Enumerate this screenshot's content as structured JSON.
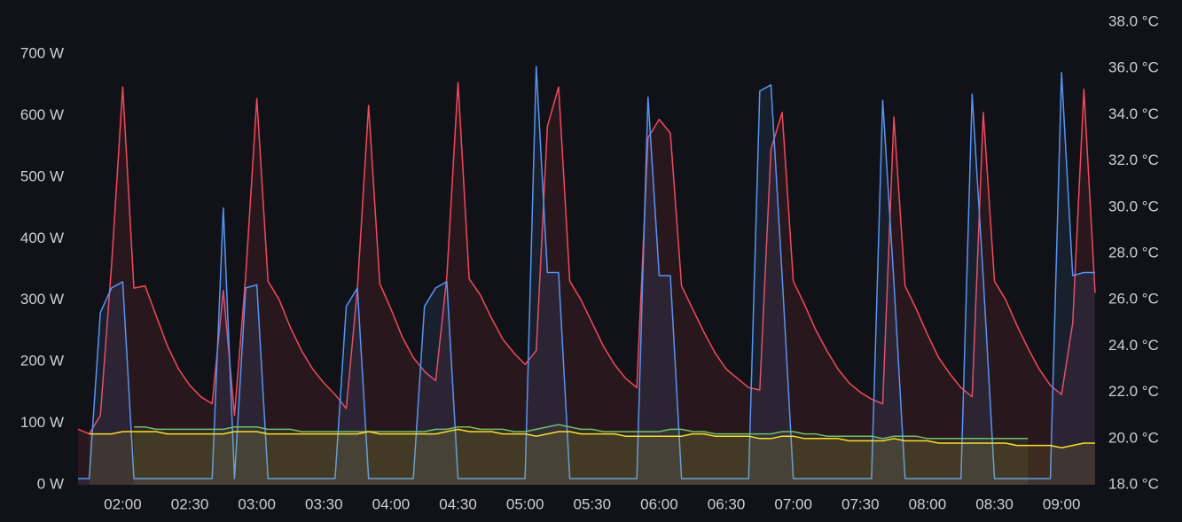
{
  "chart_data": {
    "type": "line",
    "x": [
      "01:40",
      "01:45",
      "01:50",
      "01:55",
      "02:00",
      "02:05",
      "02:10",
      "02:15",
      "02:20",
      "02:25",
      "02:30",
      "02:35",
      "02:40",
      "02:45",
      "02:50",
      "02:55",
      "03:00",
      "03:05",
      "03:10",
      "03:15",
      "03:20",
      "03:25",
      "03:30",
      "03:35",
      "03:40",
      "03:45",
      "03:50",
      "03:55",
      "04:00",
      "04:05",
      "04:10",
      "04:15",
      "04:20",
      "04:25",
      "04:30",
      "04:35",
      "04:40",
      "04:45",
      "04:50",
      "04:55",
      "05:00",
      "05:05",
      "05:10",
      "05:15",
      "05:20",
      "05:25",
      "05:30",
      "05:35",
      "05:40",
      "05:45",
      "05:50",
      "05:55",
      "06:00",
      "06:05",
      "06:10",
      "06:15",
      "06:20",
      "06:25",
      "06:30",
      "06:35",
      "06:40",
      "06:45",
      "06:50",
      "06:55",
      "07:00",
      "07:05",
      "07:10",
      "07:15",
      "07:20",
      "07:25",
      "07:30",
      "07:35",
      "07:40",
      "07:45",
      "07:50",
      "07:55",
      "08:00",
      "08:05",
      "08:10",
      "08:15",
      "08:20",
      "08:25",
      "08:30",
      "08:35",
      "08:40",
      "08:45",
      "08:50",
      "08:55",
      "09:00",
      "09:05",
      "09:10",
      "09:15"
    ],
    "xlim": [
      "01:40",
      "09:17"
    ],
    "xticks": [
      "02:00",
      "02:30",
      "03:00",
      "03:30",
      "04:00",
      "04:30",
      "05:00",
      "05:30",
      "06:00",
      "06:30",
      "07:00",
      "07:30",
      "08:00",
      "08:30",
      "09:00"
    ],
    "ylim": [
      0,
      752
    ],
    "yticks": [
      {
        "value": 0,
        "label": "0 W"
      },
      {
        "value": 100,
        "label": "100 W"
      },
      {
        "value": 200,
        "label": "200 W"
      },
      {
        "value": 300,
        "label": "300 W"
      },
      {
        "value": 400,
        "label": "400 W"
      },
      {
        "value": 500,
        "label": "500 W"
      },
      {
        "value": 600,
        "label": "600 W"
      },
      {
        "value": 700,
        "label": "700 W"
      }
    ],
    "y2lim": [
      18,
      38
    ],
    "y2ticks": [
      {
        "value": 18,
        "label": "18.0 °C"
      },
      {
        "value": 20,
        "label": "20.0 °C"
      },
      {
        "value": 22,
        "label": "22.0 °C"
      },
      {
        "value": 24,
        "label": "24.0 °C"
      },
      {
        "value": 26,
        "label": "26.0 °C"
      },
      {
        "value": 28,
        "label": "28.0 °C"
      },
      {
        "value": 30,
        "label": "30.0 °C"
      },
      {
        "value": 32,
        "label": "32.0 °C"
      },
      {
        "value": 34,
        "label": "34.0 °C"
      },
      {
        "value": 36,
        "label": "36.0 °C"
      },
      {
        "value": 38,
        "label": "38.0 °C"
      }
    ],
    "series": [
      {
        "color": "#f2495c",
        "axis": "y2",
        "values": [
          20.4,
          20.2,
          21.0,
          27.5,
          35.2,
          26.5,
          26.6,
          25.3,
          24.0,
          23.0,
          22.3,
          21.8,
          21.5,
          26.4,
          21.0,
          27.0,
          34.7,
          26.8,
          26.0,
          24.8,
          23.8,
          23.0,
          22.4,
          21.9,
          21.3,
          26.5,
          34.4,
          26.7,
          25.6,
          24.4,
          23.5,
          22.9,
          22.5,
          27.0,
          35.4,
          26.9,
          26.2,
          25.2,
          24.3,
          23.7,
          23.2,
          23.8,
          33.5,
          35.2,
          26.8,
          26.0,
          25.0,
          24.0,
          23.2,
          22.6,
          22.2,
          33.0,
          33.8,
          33.2,
          26.6,
          25.6,
          24.6,
          23.7,
          23.0,
          22.6,
          22.2,
          22.1,
          32.5,
          34.1,
          26.8,
          25.8,
          24.7,
          23.8,
          23.0,
          22.4,
          22.0,
          21.7,
          21.5,
          33.9,
          26.6,
          25.6,
          24.5,
          23.5,
          22.8,
          22.2,
          21.8,
          34.1,
          26.8,
          26.0,
          24.9,
          23.9,
          23.0,
          22.3,
          21.9,
          25.0,
          35.1,
          26.3
        ]
      },
      {
        "color": "#5794f2",
        "values": [
          10,
          10,
          280,
          320,
          330,
          10,
          10,
          10,
          10,
          10,
          10,
          10,
          10,
          450,
          10,
          320,
          325,
          10,
          10,
          10,
          10,
          10,
          10,
          10,
          290,
          320,
          10,
          10,
          10,
          10,
          10,
          290,
          320,
          330,
          10,
          10,
          10,
          10,
          10,
          10,
          10,
          680,
          345,
          345,
          10,
          10,
          10,
          10,
          10,
          10,
          10,
          630,
          340,
          340,
          10,
          10,
          10,
          10,
          10,
          10,
          10,
          640,
          650,
          340,
          10,
          10,
          10,
          10,
          10,
          10,
          10,
          10,
          625,
          330,
          10,
          10,
          10,
          10,
          10,
          10,
          635,
          335,
          10,
          10,
          10,
          10,
          10,
          10,
          670,
          340,
          345,
          345
        ]
      },
      {
        "color": "#73bf69",
        "axis": "y2",
        "values": [
          null,
          null,
          null,
          null,
          null,
          20.5,
          20.5,
          20.4,
          20.4,
          20.4,
          20.4,
          20.4,
          20.4,
          20.4,
          20.5,
          20.5,
          20.5,
          20.4,
          20.4,
          20.4,
          20.3,
          20.3,
          20.3,
          20.3,
          20.3,
          20.3,
          20.3,
          20.3,
          20.3,
          20.3,
          20.3,
          20.3,
          20.4,
          20.4,
          20.5,
          20.5,
          20.4,
          20.4,
          20.4,
          20.3,
          20.3,
          20.4,
          20.5,
          20.6,
          20.5,
          20.4,
          20.4,
          20.3,
          20.3,
          20.3,
          20.3,
          20.3,
          20.3,
          20.4,
          20.4,
          20.3,
          20.3,
          20.2,
          20.2,
          20.2,
          20.2,
          20.2,
          20.2,
          20.3,
          20.3,
          20.2,
          20.2,
          20.1,
          20.1,
          20.1,
          20.1,
          20.1,
          20.0,
          20.1,
          20.1,
          20.1,
          20.0,
          20.0,
          20.0,
          20.0,
          20.0,
          20.0,
          20.0,
          20.0,
          20.0,
          20.0,
          null,
          null,
          null,
          null,
          null,
          null
        ]
      },
      {
        "color": "#fade2a",
        "axis": "y2",
        "values": [
          null,
          20.2,
          20.2,
          20.2,
          20.3,
          20.3,
          20.3,
          20.3,
          20.2,
          20.2,
          20.2,
          20.2,
          20.2,
          20.2,
          20.3,
          20.3,
          20.3,
          20.2,
          20.2,
          20.2,
          20.2,
          20.2,
          20.2,
          20.2,
          20.2,
          20.2,
          20.3,
          20.2,
          20.2,
          20.2,
          20.2,
          20.2,
          20.2,
          20.3,
          20.4,
          20.3,
          20.3,
          20.3,
          20.2,
          20.2,
          20.2,
          20.1,
          20.2,
          20.3,
          20.3,
          20.2,
          20.2,
          20.2,
          20.2,
          20.1,
          20.1,
          20.1,
          20.1,
          20.1,
          20.1,
          20.2,
          20.2,
          20.1,
          20.1,
          20.1,
          20.1,
          20.0,
          20.0,
          20.1,
          20.1,
          20.0,
          20.0,
          20.0,
          20.0,
          19.9,
          19.9,
          19.9,
          19.9,
          20.0,
          19.9,
          19.9,
          19.9,
          19.8,
          19.8,
          19.8,
          19.8,
          19.8,
          19.8,
          19.8,
          19.7,
          19.7,
          19.7,
          19.7,
          19.6,
          19.7,
          19.8,
          19.8
        ]
      }
    ]
  }
}
